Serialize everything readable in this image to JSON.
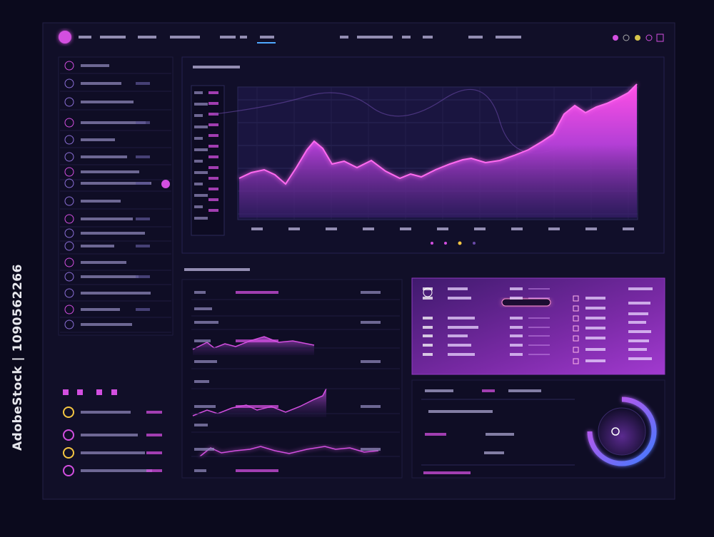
{
  "watermark": {
    "side": "AdobeStock | 1090562266"
  }
}
